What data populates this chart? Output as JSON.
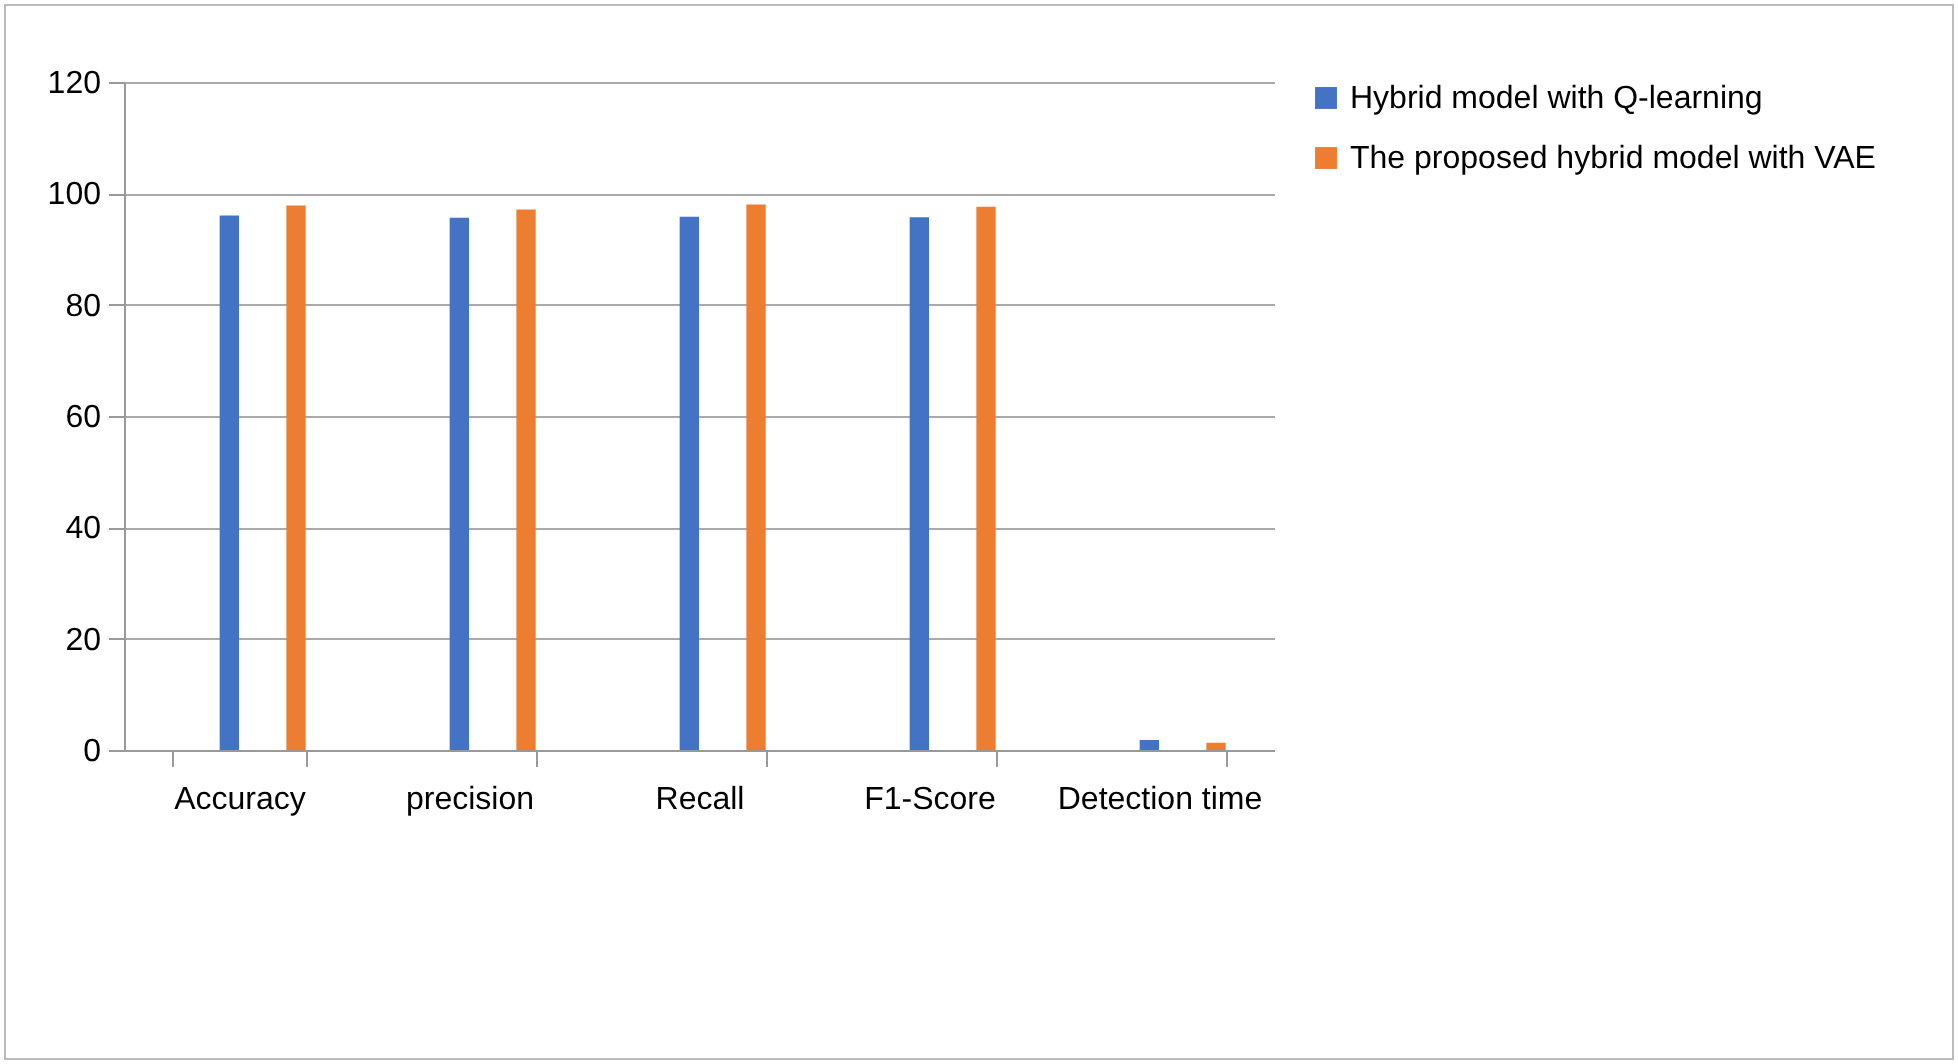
{
  "chart_data": {
    "type": "bar",
    "categories": [
      "Accuracy",
      "precision",
      "Recall",
      "F1-Score",
      "Detection time"
    ],
    "series": [
      {
        "name": "Hybrid model with Q-learning",
        "color": "#4472c4",
        "values": [
          96,
          95.6,
          95.8,
          95.7,
          1.8
        ]
      },
      {
        "name": "The proposed hybrid model with VAE",
        "color": "#ed7d31",
        "values": [
          97.8,
          97.1,
          98,
          97.6,
          1.3
        ]
      }
    ],
    "ylim": [
      0,
      120
    ],
    "yticks": [
      0,
      20,
      40,
      60,
      80,
      100,
      120
    ],
    "grid": "y",
    "legend": "right"
  }
}
